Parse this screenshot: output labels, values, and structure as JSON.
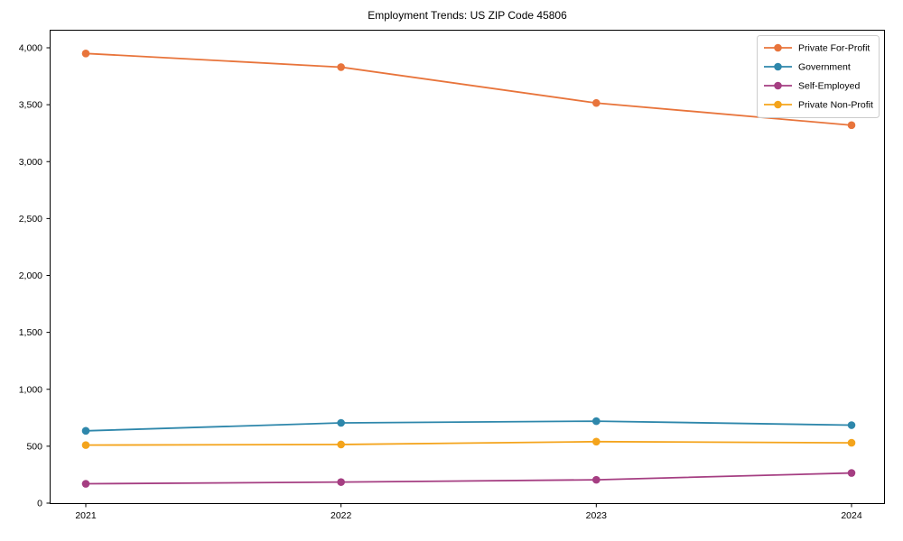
{
  "title": "Employment Trends: US ZIP Code 45806",
  "chart_data": {
    "type": "line",
    "title": "Employment Trends: US ZIP Code 45806",
    "xlabel": "",
    "ylabel": "",
    "categories": [
      "2021",
      "2022",
      "2023",
      "2024"
    ],
    "series": [
      {
        "name": "Private For-Profit",
        "color": "#E8743B",
        "values": [
          3950,
          3830,
          3515,
          3320
        ]
      },
      {
        "name": "Government",
        "color": "#2E87AB",
        "values": [
          635,
          705,
          720,
          685
        ]
      },
      {
        "name": "Self-Employed",
        "color": "#A53E82",
        "values": [
          170,
          185,
          205,
          265
        ]
      },
      {
        "name": "Private Non-Profit",
        "color": "#F4A41C",
        "values": [
          510,
          515,
          540,
          530
        ]
      }
    ],
    "ylim": [
      0,
      4160
    ],
    "yticks": [
      0,
      500,
      1000,
      1500,
      2000,
      2500,
      3000,
      3500,
      4000
    ],
    "ytick_labels": [
      "0",
      "500",
      "1,000",
      "1,500",
      "2,000",
      "2,500",
      "3,000",
      "3,500",
      "4,000"
    ],
    "grid": false,
    "legend_position": "upper right",
    "axis_color": "#000000",
    "legend_border_color": "#cccccc",
    "legend_background": "#ffffff"
  }
}
